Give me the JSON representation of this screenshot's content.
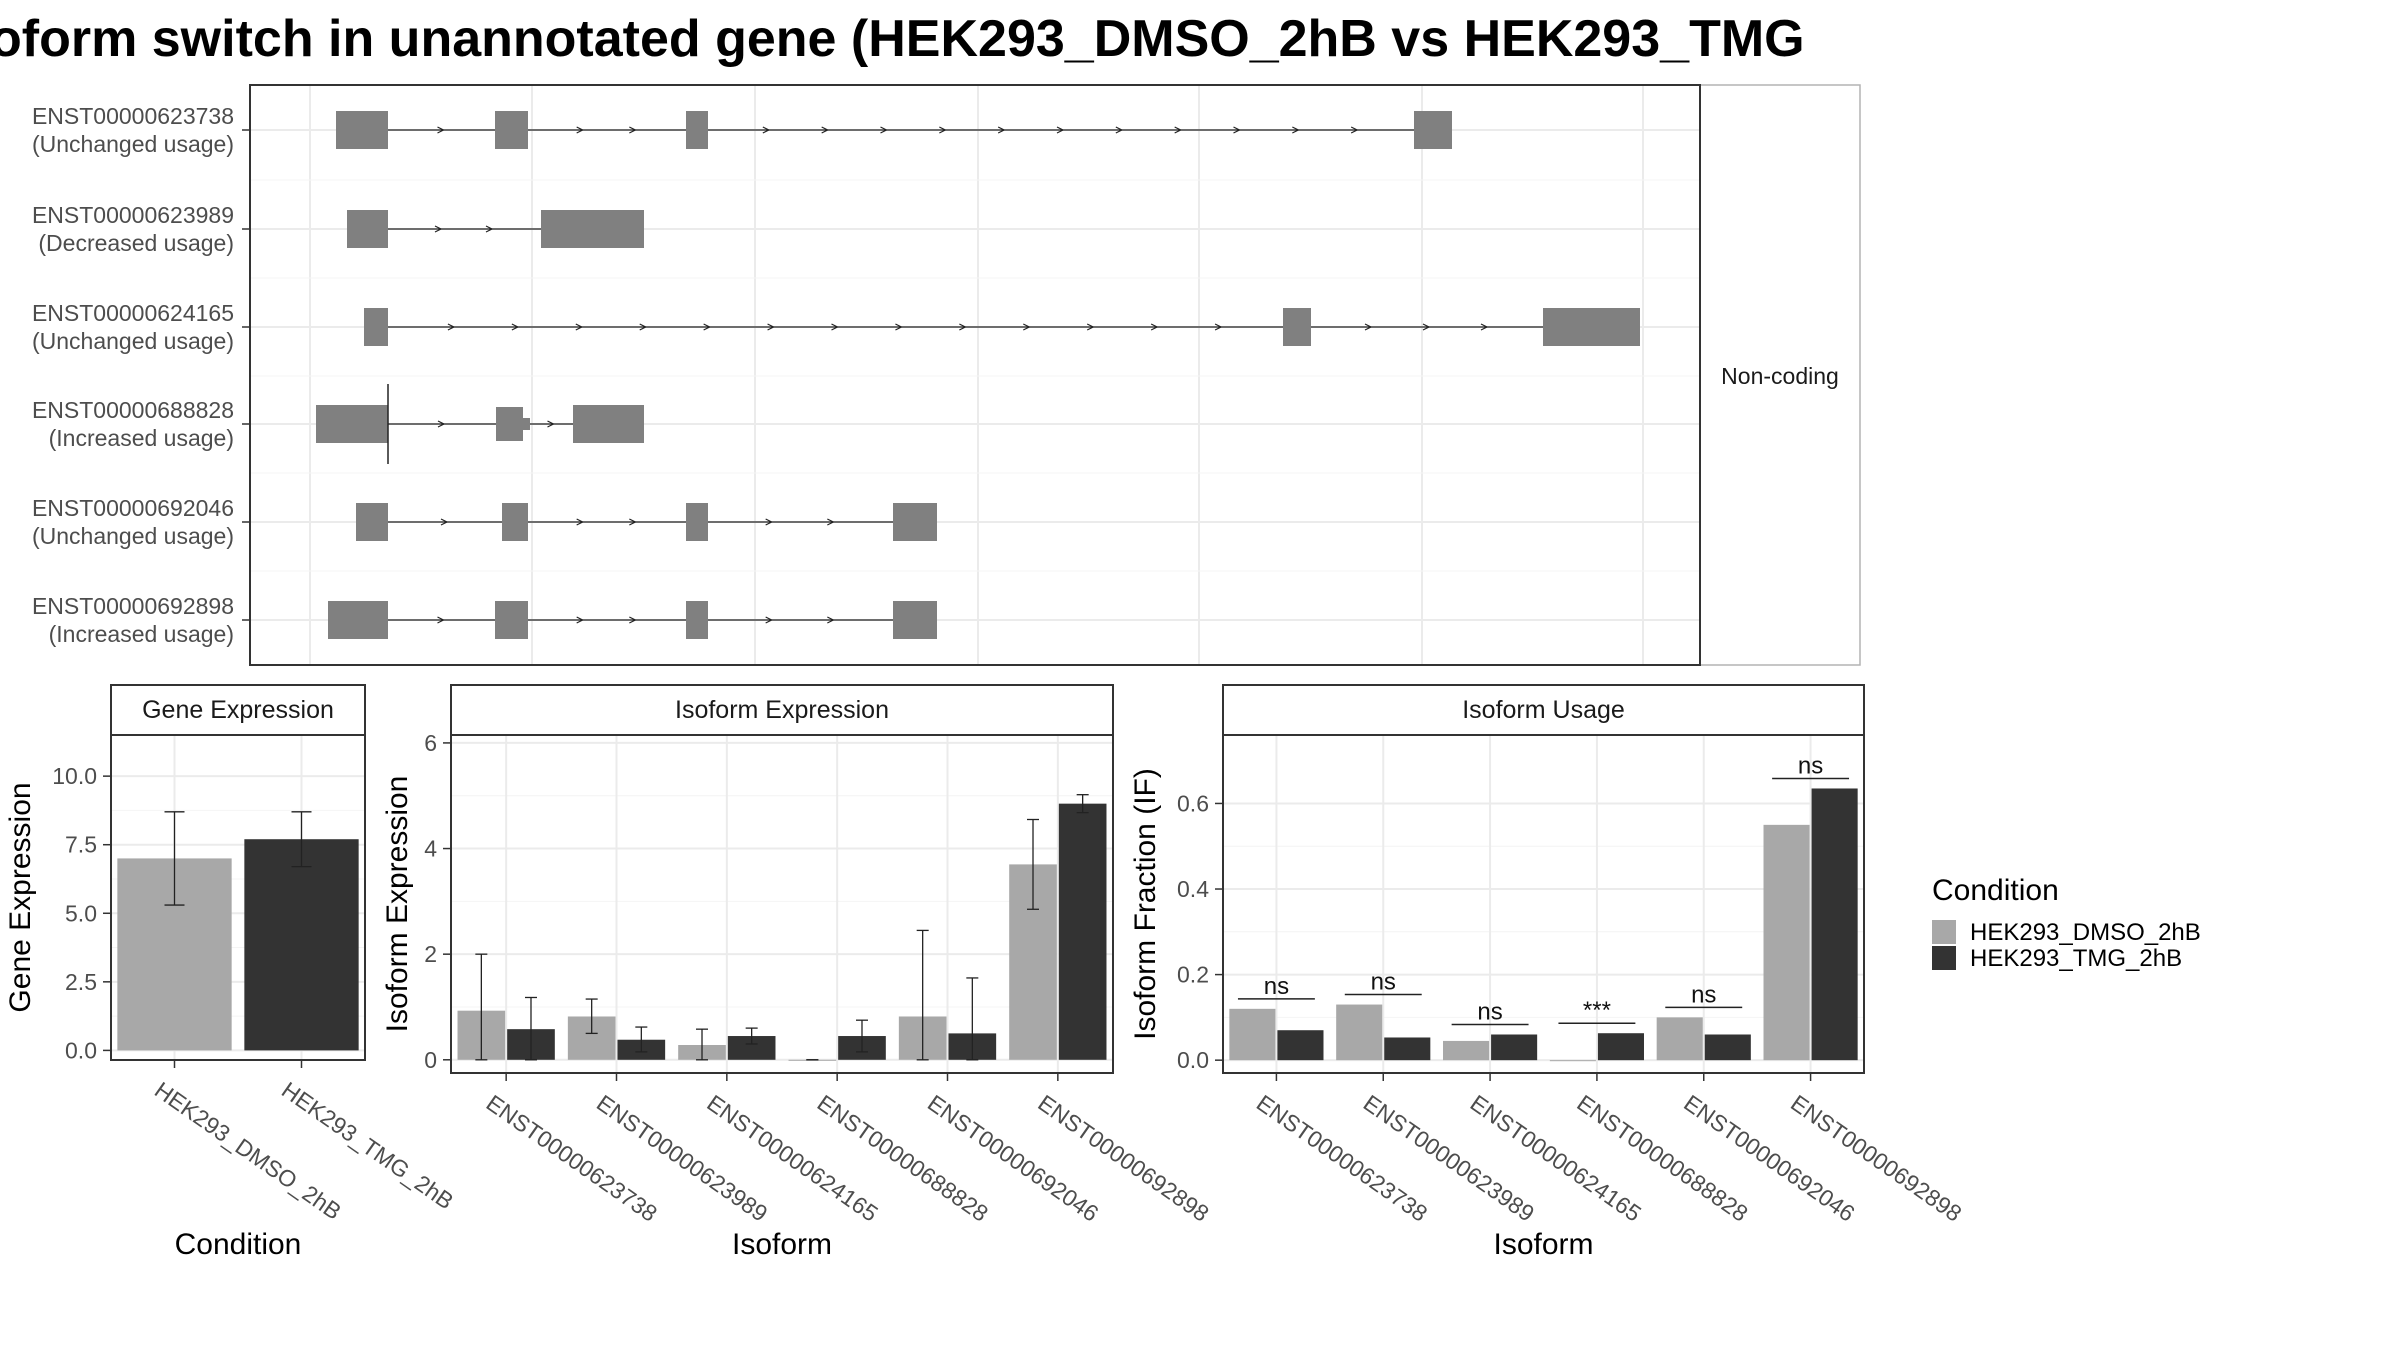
{
  "title": "oform switch in unannotated gene (HEK293_DMSO_2hB vs HEK293_TMG",
  "colors": {
    "dmso": "#a8a8a8",
    "tmg": "#333333",
    "exon": "#808080",
    "grid": "#ebebeb",
    "border": "#333333",
    "strip_border": "#b3b3b3",
    "background": "#ffffff"
  },
  "chart_data": [
    {
      "type": "gene-structure",
      "facet_label": "Non-coding",
      "transcripts": [
        {
          "id": "ENST00000623738",
          "usage": "(Unchanged usage)"
        },
        {
          "id": "ENST00000623989",
          "usage": "(Decreased usage)"
        },
        {
          "id": "ENST00000624165",
          "usage": "(Unchanged usage)"
        },
        {
          "id": "ENST00000688828",
          "usage": "(Increased usage)"
        },
        {
          "id": "ENST00000692046",
          "usage": "(Unchanged usage)"
        },
        {
          "id": "ENST00000692898",
          "usage": "(Increased usage)"
        }
      ]
    },
    {
      "type": "bar",
      "panel_title": "Gene Expression",
      "xlabel": "Condition",
      "ylabel": "Gene Expression",
      "ylim": [
        -0.35,
        11.5
      ],
      "yticks": [
        "0.0",
        "2.5",
        "5.0",
        "7.5",
        "10.0"
      ],
      "categories": [
        "HEK293_DMSO_2hB",
        "HEK293_TMG_2hB"
      ],
      "values": [
        7.0,
        7.7
      ],
      "err_low": [
        5.3,
        6.7
      ],
      "err_high": [
        8.7,
        8.7
      ]
    },
    {
      "type": "bar",
      "panel_title": "Isoform Expression",
      "xlabel": "Isoform",
      "ylabel": "Isoform Expression",
      "ylim": [
        -0.25,
        6.15
      ],
      "yticks": [
        "0",
        "2",
        "4",
        "6"
      ],
      "categories": [
        "ENST00000623738",
        "ENST00000623989",
        "ENST00000624165",
        "ENST00000688828",
        "ENST00000692046",
        "ENST00000692898"
      ],
      "series": [
        {
          "name": "HEK293_DMSO_2hB",
          "values": [
            0.93,
            0.82,
            0.28,
            0.0,
            0.82,
            3.7
          ],
          "err_low": [
            0.0,
            0.5,
            0.0,
            0.0,
            0.0,
            2.85
          ],
          "err_high": [
            2.0,
            1.15,
            0.58,
            0.0,
            2.45,
            4.55
          ]
        },
        {
          "name": "HEK293_TMG_2hB",
          "values": [
            0.58,
            0.38,
            0.45,
            0.45,
            0.5,
            4.85
          ],
          "err_low": [
            0.0,
            0.15,
            0.3,
            0.15,
            0.0,
            4.68
          ],
          "err_high": [
            1.18,
            0.62,
            0.6,
            0.75,
            1.55,
            5.02
          ]
        }
      ]
    },
    {
      "type": "bar",
      "panel_title": "Isoform Usage",
      "xlabel": "Isoform",
      "ylabel": "Isoform Fraction (IF)",
      "ylim": [
        -0.03,
        0.76
      ],
      "yticks": [
        "0.0",
        "0.2",
        "0.4",
        "0.6"
      ],
      "categories": [
        "ENST00000623738",
        "ENST00000623989",
        "ENST00000624165",
        "ENST00000688828",
        "ENST00000692046",
        "ENST00000692898"
      ],
      "series": [
        {
          "name": "HEK293_DMSO_2hB",
          "values": [
            0.12,
            0.13,
            0.045,
            0.0,
            0.1,
            0.55
          ]
        },
        {
          "name": "HEK293_TMG_2hB",
          "values": [
            0.07,
            0.053,
            0.06,
            0.063,
            0.06,
            0.635
          ]
        }
      ],
      "significance": [
        "ns",
        "ns",
        "ns",
        "***",
        "ns",
        "ns"
      ]
    }
  ],
  "legend": {
    "title": "Condition",
    "entries": [
      "HEK293_DMSO_2hB",
      "HEK293_TMG_2hB"
    ]
  }
}
